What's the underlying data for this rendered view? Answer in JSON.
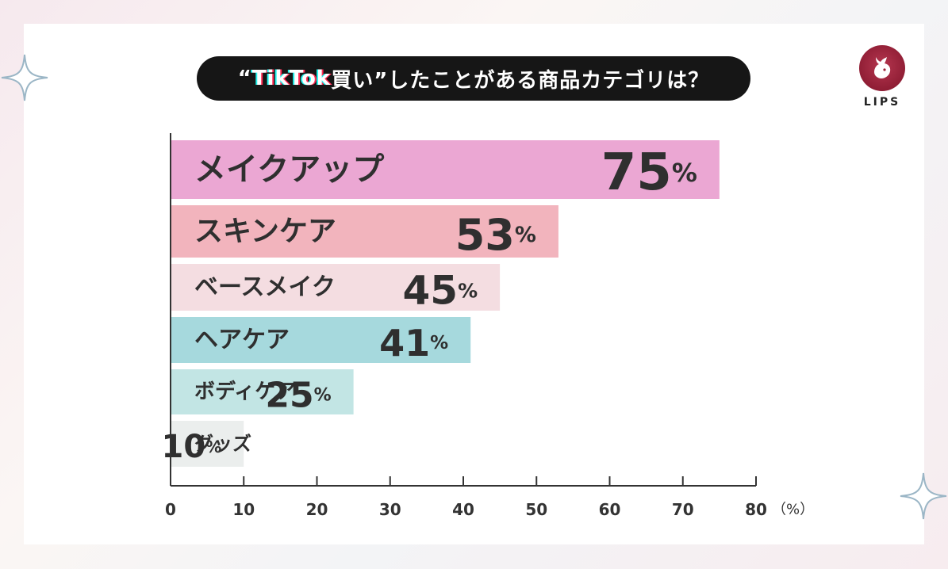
{
  "header": {
    "title_open": "“",
    "title_brand": "TikTok",
    "title_rest": "買い”したことがある商品カテゴリは？"
  },
  "logo": {
    "text": "LIPS",
    "icon": "deer-icon"
  },
  "decor": {
    "sparkle_icon": "sparkle-icon"
  },
  "colors": {
    "title_bg": "#161616",
    "logo_bg": "#9a2238",
    "value_text": "#2f2f2f",
    "label_text": "#2f2f2f"
  },
  "chart_data": {
    "type": "bar",
    "orientation": "horizontal",
    "title": "“TikTok買い”したことがある商品カテゴリは？",
    "categories": [
      "メイクアップ",
      "スキンケア",
      "ベースメイク",
      "ヘアケア",
      "ボディケア",
      "グッズ"
    ],
    "values": [
      75,
      53,
      45,
      41,
      25,
      10
    ],
    "value_suffix": "%",
    "colors": [
      "#eba7d3",
      "#f2b4bd",
      "#f4dde1",
      "#a6d9dd",
      "#c2e5e4",
      "#ebeeed"
    ],
    "xlim": [
      0,
      80
    ],
    "xticks": [
      0,
      10,
      20,
      30,
      40,
      50,
      60,
      70,
      80
    ],
    "xunit": "（%）",
    "grid": false,
    "legend": "none"
  }
}
